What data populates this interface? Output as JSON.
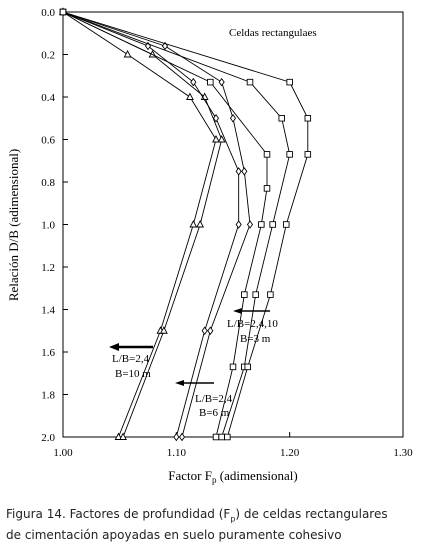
{
  "chart_data": {
    "type": "line",
    "xlabel": [
      "Factor F",
      "p",
      " (adimensional)"
    ],
    "ylabel": "Relación D/B (adimensional)",
    "xlim": [
      1.0,
      1.3
    ],
    "xticks": [
      {
        "value": 1.0,
        "label": "1.00"
      },
      {
        "value": 1.1,
        "label": "1.10"
      },
      {
        "value": 1.2,
        "label": "1.20"
      },
      {
        "value": 1.3,
        "label": "1.30"
      }
    ],
    "ylim": [
      0,
      2
    ],
    "y_inverted": true,
    "yticks": [
      {
        "value": 0,
        "label": "0.0"
      },
      0.2,
      0.4,
      0.6,
      0.8,
      {
        "value": 1,
        "label": "1.0"
      },
      1.2,
      1.4,
      1.6,
      1.8,
      {
        "value": 2,
        "label": "2.0"
      }
    ],
    "color": "#000000",
    "series": [
      {
        "marker": "triangle",
        "x": [
          1.0,
          1.057,
          1.112,
          1.135,
          1.115,
          1.086,
          1.049
        ],
        "values": [
          0,
          0.2,
          0.4,
          0.6,
          1.0,
          1.5,
          2.0
        ]
      },
      {
        "marker": "triangle",
        "x": [
          1.0,
          1.079,
          1.125,
          1.14,
          1.121,
          1.089,
          1.053
        ],
        "values": [
          0,
          0.2,
          0.4,
          0.6,
          1.0,
          1.5,
          2.0
        ]
      },
      {
        "marker": "diamond",
        "x": [
          1.0,
          1.075,
          1.115,
          1.135,
          1.155,
          1.155,
          1.125,
          1.1
        ],
        "values": [
          0,
          0.16,
          0.33,
          0.5,
          0.75,
          1.0,
          1.5,
          2.0
        ]
      },
      {
        "marker": "diamond",
        "x": [
          1.0,
          1.09,
          1.14,
          1.15,
          1.16,
          1.165,
          1.13,
          1.105
        ],
        "values": [
          0,
          0.16,
          0.33,
          0.5,
          0.75,
          1.0,
          1.5,
          2.0
        ]
      },
      {
        "marker": "square",
        "x": [
          1.0,
          1.13,
          1.18,
          1.18,
          1.175,
          1.16,
          1.15,
          1.135
        ],
        "values": [
          0,
          0.33,
          0.67,
          0.83,
          1.0,
          1.33,
          1.67,
          2.0
        ]
      },
      {
        "marker": "square",
        "x": [
          1.0,
          1.165,
          1.193,
          1.2,
          1.185,
          1.17,
          1.16,
          1.14
        ],
        "values": [
          0,
          0.33,
          0.5,
          0.67,
          1.0,
          1.33,
          1.67,
          2.0
        ]
      },
      {
        "marker": "square",
        "x": [
          1.0,
          1.2,
          1.216,
          1.216,
          1.197,
          1.183,
          1.163,
          1.145
        ],
        "values": [
          0,
          0.33,
          0.5,
          0.67,
          1.0,
          1.33,
          1.67,
          2.0
        ]
      }
    ],
    "annotations": [
      "Celdas rectangulaes",
      "L/B=2,4,10",
      "B=3 m",
      "L/B=2,4",
      "B=10 m",
      "L/B=2,4",
      "B=6 m"
    ]
  },
  "caption": {
    "pre": "Figura 14. Factores de profundidad (F",
    "sub": "p",
    "post": ") de celdas rectangulares",
    "line2": "de cimentación apoyadas en suelo puramente cohesivo"
  }
}
